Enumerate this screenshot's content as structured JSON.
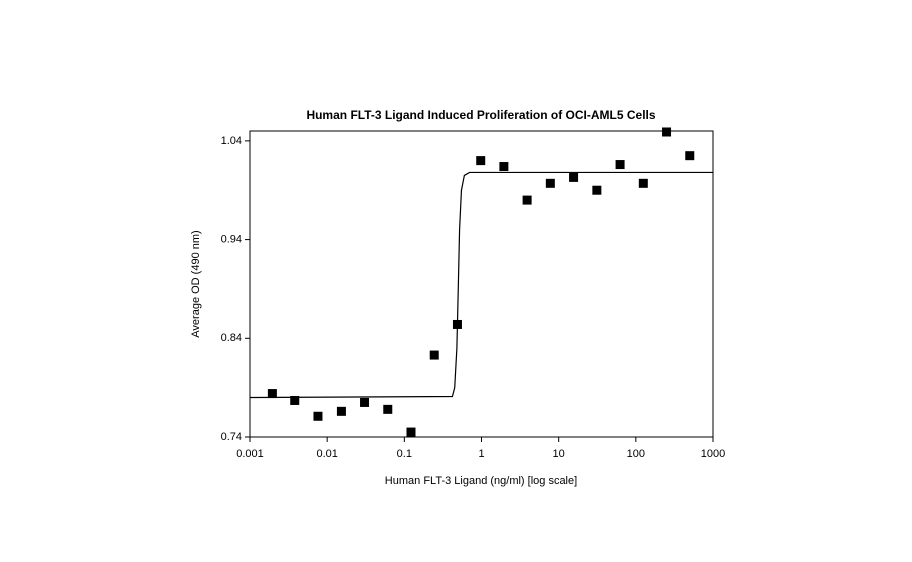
{
  "chart_data": {
    "type": "scatter",
    "title": "Human FLT-3 Ligand Induced Proliferation of OCI-AML5 Cells",
    "xlabel": "Human FLT-3 Ligand (ng/ml) [log scale]",
    "ylabel": "Average OD (490 nm)",
    "xscale": "log",
    "xlim": [
      0.001,
      1000
    ],
    "xticks": [
      0.001,
      0.01,
      0.1,
      1,
      10,
      100,
      1000
    ],
    "ylim": [
      0.74,
      1.05
    ],
    "yticks": [
      0.74,
      0.84,
      0.94,
      1.04
    ],
    "grid": false,
    "series": [
      {
        "type": "scatter",
        "marker": "square",
        "color": "#000000",
        "x": [
          0.00195,
          0.0038,
          0.0076,
          0.0153,
          0.0305,
          0.061,
          0.122,
          0.244,
          0.488,
          0.977,
          1.95,
          3.9,
          7.8,
          15.6,
          31.25,
          62.5,
          125,
          250,
          500
        ],
        "values": [
          0.784,
          0.777,
          0.761,
          0.766,
          0.775,
          0.768,
          0.745,
          0.823,
          0.854,
          1.02,
          1.014,
          0.98,
          0.997,
          1.003,
          0.99,
          1.016,
          0.997,
          1.049,
          1.025
        ]
      },
      {
        "type": "line",
        "color": "#000000",
        "x": [
          0.001,
          0.42,
          0.45,
          0.48,
          0.5,
          0.52,
          0.55,
          0.6,
          0.7,
          1000
        ],
        "values": [
          0.78,
          0.781,
          0.79,
          0.83,
          0.89,
          0.95,
          0.99,
          1.005,
          1.008,
          1.008
        ]
      }
    ]
  }
}
